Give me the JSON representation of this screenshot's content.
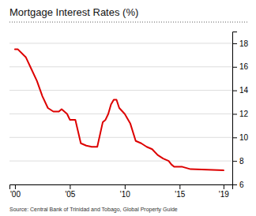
{
  "chart_data": {
    "type": "line",
    "title": "Mortgage Interest Rates (%)",
    "source": "Source: Central Bank of Trinidad and Tobago, Global Property Guide",
    "color": "#dd0000",
    "x": [
      2000.0,
      2000.25,
      2001.0,
      2001.5,
      2002.0,
      2002.5,
      2003.0,
      2003.5,
      2004.0,
      2004.25,
      2004.5,
      2004.75,
      2005.0,
      2005.25,
      2005.5,
      2006.0,
      2006.5,
      2007.0,
      2007.25,
      2007.5,
      2008.0,
      2008.25,
      2008.5,
      2008.75,
      2009.0,
      2009.25,
      2009.5,
      2010.0,
      2010.5,
      2011.0,
      2011.5,
      2012.0,
      2012.5,
      2013.0,
      2013.5,
      2014.0,
      2014.25,
      2014.5,
      2014.75,
      2015.0,
      2015.25,
      2016.0,
      2019.0
    ],
    "values": [
      17.5,
      17.5,
      16.8,
      15.8,
      14.8,
      13.5,
      12.5,
      12.2,
      12.2,
      12.4,
      12.2,
      12.0,
      11.5,
      11.5,
      11.5,
      9.5,
      9.3,
      9.2,
      9.2,
      9.2,
      11.3,
      11.5,
      12.0,
      12.8,
      13.2,
      13.2,
      12.5,
      12.0,
      11.2,
      9.7,
      9.5,
      9.2,
      9.0,
      8.5,
      8.2,
      8.0,
      7.7,
      7.5,
      7.5,
      7.5,
      7.5,
      7.3,
      7.2
    ],
    "xlim": [
      1999.5,
      2019.8
    ],
    "xticks": [
      {
        "value": 2000,
        "label": "'00"
      },
      {
        "value": 2005,
        "label": "'05"
      },
      {
        "value": 2010,
        "label": "'10"
      },
      {
        "value": 2015,
        "label": "'15"
      },
      {
        "value": 2019,
        "label": "'19"
      }
    ],
    "ylim": [
      6.0,
      19.0
    ],
    "yticks": [
      6,
      8,
      10,
      12,
      14,
      16,
      18
    ],
    "grid": true
  }
}
